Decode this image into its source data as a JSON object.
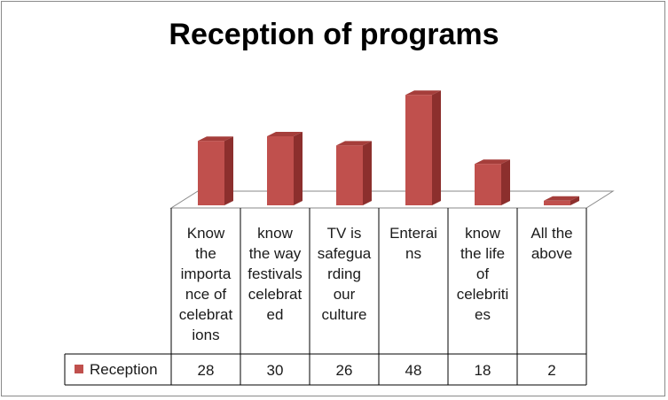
{
  "chart_data": {
    "type": "bar",
    "title": "Reception of programs",
    "categories": [
      "Know the importance of celebrations",
      "know the way festivals celebrated",
      "TV is safeguarding our culture",
      "Enterains",
      "know the life of celebrities",
      "All the above"
    ],
    "category_lines": [
      [
        "Know",
        "the",
        "importa",
        "nce of",
        "celebrat",
        "ions"
      ],
      [
        "know",
        "the way",
        "festivals",
        "celebrat",
        "ed"
      ],
      [
        "TV is",
        "safegua",
        "rding",
        "our",
        "culture"
      ],
      [
        "Enterai",
        "ns"
      ],
      [
        "know",
        "the life",
        "of",
        "celebriti",
        "es"
      ],
      [
        "All the",
        "above"
      ]
    ],
    "series": [
      {
        "name": "Reception",
        "values": [
          28,
          30,
          26,
          48,
          18,
          2
        ]
      }
    ],
    "ylim": [
      0,
      50
    ],
    "grid": false,
    "legend": "data-table",
    "colors": {
      "bar_front": "#c0504d",
      "bar_side": "#8c2f2d",
      "bar_top": "#a53e3b",
      "border": "#000000"
    }
  }
}
